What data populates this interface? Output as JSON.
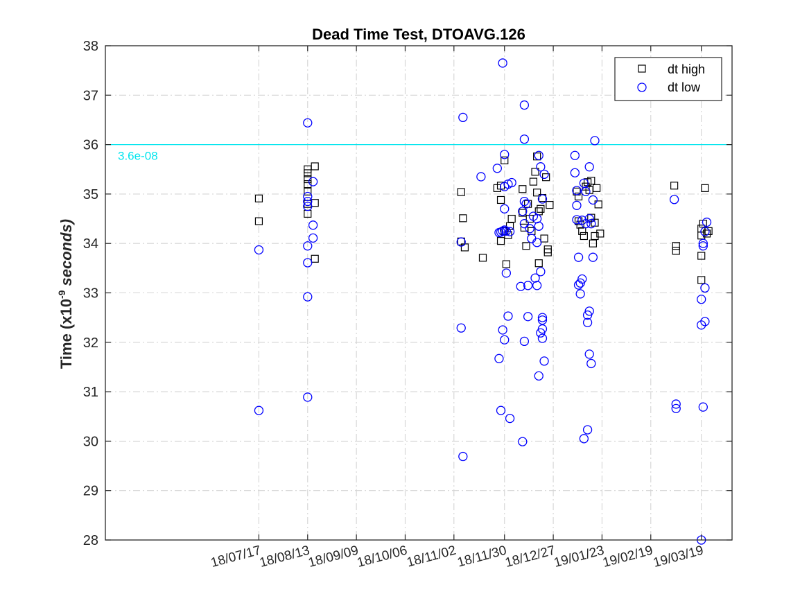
{
  "chart_data": {
    "type": "scatter",
    "title": "Dead Time Test, DTOAVG.126",
    "ylabel": "Time (x10",
    "ylabel_exponent": "-9",
    "ylabel_unit": " seconds)",
    "ylim": [
      28,
      38
    ],
    "xlim": [
      "2018-04-23",
      "2019-04-05"
    ],
    "yticks": [
      28,
      29,
      30,
      31,
      32,
      33,
      34,
      35,
      36,
      37,
      38
    ],
    "xtick_dates": [
      "2018-07-17",
      "2018-08-13",
      "2018-09-09",
      "2018-10-06",
      "2018-11-02",
      "2018-11-30",
      "2018-12-27",
      "2019-01-23",
      "2019-02-19",
      "2019-03-19"
    ],
    "xtick_labels": [
      "18/07/17",
      "18/08/13",
      "18/09/09",
      "18/10/06",
      "18/11/02",
      "18/11/30",
      "18/12/27",
      "19/01/23",
      "19/02/19",
      "19/03/19"
    ],
    "grid": true,
    "legend_position": "top-right",
    "threshold": {
      "value": 36,
      "label": "3.6e-08",
      "color": "#00e5ee"
    },
    "series": [
      {
        "name": "dt high",
        "marker": "square",
        "color": "#000000",
        "points": [
          {
            "x": "2018-07-17",
            "y": 34.91
          },
          {
            "x": "2018-07-17",
            "y": 34.45
          },
          {
            "x": "2018-08-13",
            "y": 35.5
          },
          {
            "x": "2018-08-13",
            "y": 35.42
          },
          {
            "x": "2018-08-13",
            "y": 35.3
          },
          {
            "x": "2018-08-13",
            "y": 35.2
          },
          {
            "x": "2018-08-13",
            "y": 35.05
          },
          {
            "x": "2018-08-13",
            "y": 34.8
          },
          {
            "x": "2018-08-13",
            "y": 34.6
          },
          {
            "x": "2018-08-17",
            "y": 35.56
          },
          {
            "x": "2018-08-17",
            "y": 34.82
          },
          {
            "x": "2018-08-17",
            "y": 33.69
          },
          {
            "x": "2018-11-06",
            "y": 35.04
          },
          {
            "x": "2018-11-07",
            "y": 34.51
          },
          {
            "x": "2018-11-06",
            "y": 34.04
          },
          {
            "x": "2018-11-08",
            "y": 33.92
          },
          {
            "x": "2018-11-18",
            "y": 33.71
          },
          {
            "x": "2018-11-26",
            "y": 35.12
          },
          {
            "x": "2018-11-28",
            "y": 35.17
          },
          {
            "x": "2018-11-28",
            "y": 34.88
          },
          {
            "x": "2018-11-28",
            "y": 34.05
          },
          {
            "x": "2018-11-30",
            "y": 35.68
          },
          {
            "x": "2018-11-30",
            "y": 34.25
          },
          {
            "x": "2018-12-01",
            "y": 33.58
          },
          {
            "x": "2018-12-02",
            "y": 34.17
          },
          {
            "x": "2018-12-03",
            "y": 34.35
          },
          {
            "x": "2018-12-04",
            "y": 34.5
          },
          {
            "x": "2018-12-10",
            "y": 35.1
          },
          {
            "x": "2018-12-10",
            "y": 34.62
          },
          {
            "x": "2018-12-11",
            "y": 34.32
          },
          {
            "x": "2018-12-12",
            "y": 33.95
          },
          {
            "x": "2018-12-13",
            "y": 34.8
          },
          {
            "x": "2018-12-14",
            "y": 34.5
          },
          {
            "x": "2018-12-15",
            "y": 34.25
          },
          {
            "x": "2018-12-16",
            "y": 35.25
          },
          {
            "x": "2018-12-17",
            "y": 35.45
          },
          {
            "x": "2018-12-18",
            "y": 35.76
          },
          {
            "x": "2018-12-18",
            "y": 35.03
          },
          {
            "x": "2018-12-19",
            "y": 34.65
          },
          {
            "x": "2018-12-19",
            "y": 33.6
          },
          {
            "x": "2018-12-20",
            "y": 34.7
          },
          {
            "x": "2018-12-21",
            "y": 34.92
          },
          {
            "x": "2018-12-22",
            "y": 34.1
          },
          {
            "x": "2018-12-23",
            "y": 35.34
          },
          {
            "x": "2018-12-24",
            "y": 33.88
          },
          {
            "x": "2018-12-24",
            "y": 33.82
          },
          {
            "x": "2018-12-25",
            "y": 34.78
          },
          {
            "x": "2019-01-09",
            "y": 35.05
          },
          {
            "x": "2019-01-10",
            "y": 34.95
          },
          {
            "x": "2019-01-10",
            "y": 34.45
          },
          {
            "x": "2019-01-11",
            "y": 34.38
          },
          {
            "x": "2019-01-12",
            "y": 34.25
          },
          {
            "x": "2019-01-13",
            "y": 34.15
          },
          {
            "x": "2019-01-14",
            "y": 35.15
          },
          {
            "x": "2019-01-15",
            "y": 35.24
          },
          {
            "x": "2019-01-16",
            "y": 35.08
          },
          {
            "x": "2019-01-17",
            "y": 35.27
          },
          {
            "x": "2019-01-17",
            "y": 34.52
          },
          {
            "x": "2019-01-18",
            "y": 34.0
          },
          {
            "x": "2019-01-19",
            "y": 34.42
          },
          {
            "x": "2019-01-19",
            "y": 34.15
          },
          {
            "x": "2019-01-20",
            "y": 35.12
          },
          {
            "x": "2019-01-21",
            "y": 34.79
          },
          {
            "x": "2019-01-22",
            "y": 34.2
          },
          {
            "x": "2019-03-04",
            "y": 35.17
          },
          {
            "x": "2019-03-05",
            "y": 33.95
          },
          {
            "x": "2019-03-05",
            "y": 33.85
          },
          {
            "x": "2019-03-19",
            "y": 34.3
          },
          {
            "x": "2019-03-19",
            "y": 34.16
          },
          {
            "x": "2019-03-19",
            "y": 33.75
          },
          {
            "x": "2019-03-19",
            "y": 33.26
          },
          {
            "x": "2019-03-20",
            "y": 34.4
          },
          {
            "x": "2019-03-21",
            "y": 35.12
          },
          {
            "x": "2019-03-22",
            "y": 34.2
          },
          {
            "x": "2019-03-23",
            "y": 34.25
          }
        ]
      },
      {
        "name": "dt low",
        "marker": "circle",
        "color": "#0000ff",
        "points": [
          {
            "x": "2018-07-17",
            "y": 33.87
          },
          {
            "x": "2018-07-17",
            "y": 30.62
          },
          {
            "x": "2018-08-13",
            "y": 36.44
          },
          {
            "x": "2018-08-13",
            "y": 34.95
          },
          {
            "x": "2018-08-13",
            "y": 34.85
          },
          {
            "x": "2018-08-13",
            "y": 34.75
          },
          {
            "x": "2018-08-13",
            "y": 33.95
          },
          {
            "x": "2018-08-13",
            "y": 33.61
          },
          {
            "x": "2018-08-13",
            "y": 32.92
          },
          {
            "x": "2018-08-13",
            "y": 30.89
          },
          {
            "x": "2018-08-16",
            "y": 35.25
          },
          {
            "x": "2018-08-16",
            "y": 34.37
          },
          {
            "x": "2018-08-16",
            "y": 34.11
          },
          {
            "x": "2018-11-06",
            "y": 34.03
          },
          {
            "x": "2018-11-06",
            "y": 32.29
          },
          {
            "x": "2018-11-07",
            "y": 36.55
          },
          {
            "x": "2018-11-07",
            "y": 29.69
          },
          {
            "x": "2018-11-17",
            "y": 35.35
          },
          {
            "x": "2018-11-26",
            "y": 35.52
          },
          {
            "x": "2018-11-27",
            "y": 34.22
          },
          {
            "x": "2018-11-27",
            "y": 31.67
          },
          {
            "x": "2018-11-28",
            "y": 34.23
          },
          {
            "x": "2018-11-28",
            "y": 30.62
          },
          {
            "x": "2018-11-29",
            "y": 37.65
          },
          {
            "x": "2018-11-29",
            "y": 34.25
          },
          {
            "x": "2018-11-29",
            "y": 32.25
          },
          {
            "x": "2018-11-30",
            "y": 35.8
          },
          {
            "x": "2018-11-30",
            "y": 35.15
          },
          {
            "x": "2018-11-30",
            "y": 34.7
          },
          {
            "x": "2018-11-30",
            "y": 34.27
          },
          {
            "x": "2018-11-30",
            "y": 32.05
          },
          {
            "x": "2018-12-01",
            "y": 34.25
          },
          {
            "x": "2018-12-01",
            "y": 33.4
          },
          {
            "x": "2018-12-02",
            "y": 35.2
          },
          {
            "x": "2018-12-02",
            "y": 32.53
          },
          {
            "x": "2018-12-03",
            "y": 34.24
          },
          {
            "x": "2018-12-03",
            "y": 30.46
          },
          {
            "x": "2018-12-04",
            "y": 35.23
          },
          {
            "x": "2018-12-09",
            "y": 33.13
          },
          {
            "x": "2018-12-10",
            "y": 34.65
          },
          {
            "x": "2018-12-10",
            "y": 29.99
          },
          {
            "x": "2018-12-11",
            "y": 36.8
          },
          {
            "x": "2018-12-11",
            "y": 36.11
          },
          {
            "x": "2018-12-11",
            "y": 34.85
          },
          {
            "x": "2018-12-11",
            "y": 34.4
          },
          {
            "x": "2018-12-11",
            "y": 32.02
          },
          {
            "x": "2018-12-12",
            "y": 34.8
          },
          {
            "x": "2018-12-13",
            "y": 33.15
          },
          {
            "x": "2018-12-13",
            "y": 32.52
          },
          {
            "x": "2018-12-14",
            "y": 34.3
          },
          {
            "x": "2018-12-15",
            "y": 34.1
          },
          {
            "x": "2018-12-16",
            "y": 34.55
          },
          {
            "x": "2018-12-17",
            "y": 33.3
          },
          {
            "x": "2018-12-18",
            "y": 34.5
          },
          {
            "x": "2018-12-18",
            "y": 34.02
          },
          {
            "x": "2018-12-18",
            "y": 33.15
          },
          {
            "x": "2018-12-19",
            "y": 35.78
          },
          {
            "x": "2018-12-19",
            "y": 34.35
          },
          {
            "x": "2018-12-19",
            "y": 31.32
          },
          {
            "x": "2018-12-20",
            "y": 35.55
          },
          {
            "x": "2018-12-20",
            "y": 33.43
          },
          {
            "x": "2018-12-20",
            "y": 32.19
          },
          {
            "x": "2018-12-21",
            "y": 34.9
          },
          {
            "x": "2018-12-21",
            "y": 32.5
          },
          {
            "x": "2018-12-21",
            "y": 32.45
          },
          {
            "x": "2018-12-21",
            "y": 32.27
          },
          {
            "x": "2018-12-21",
            "y": 32.08
          },
          {
            "x": "2018-12-22",
            "y": 35.4
          },
          {
            "x": "2018-12-22",
            "y": 31.62
          },
          {
            "x": "2019-01-08",
            "y": 35.78
          },
          {
            "x": "2019-01-08",
            "y": 35.43
          },
          {
            "x": "2019-01-09",
            "y": 35.07
          },
          {
            "x": "2019-01-09",
            "y": 34.77
          },
          {
            "x": "2019-01-09",
            "y": 34.48
          },
          {
            "x": "2019-01-10",
            "y": 33.72
          },
          {
            "x": "2019-01-10",
            "y": 33.16
          },
          {
            "x": "2019-01-11",
            "y": 33.2
          },
          {
            "x": "2019-01-11",
            "y": 32.98
          },
          {
            "x": "2019-01-12",
            "y": 34.47
          },
          {
            "x": "2019-01-12",
            "y": 33.28
          },
          {
            "x": "2019-01-13",
            "y": 35.22
          },
          {
            "x": "2019-01-13",
            "y": 30.05
          },
          {
            "x": "2019-01-14",
            "y": 35.05
          },
          {
            "x": "2019-01-14",
            "y": 34.4
          },
          {
            "x": "2019-01-15",
            "y": 32.4
          },
          {
            "x": "2019-01-15",
            "y": 32.55
          },
          {
            "x": "2019-01-15",
            "y": 30.23
          },
          {
            "x": "2019-01-16",
            "y": 35.55
          },
          {
            "x": "2019-01-16",
            "y": 34.5
          },
          {
            "x": "2019-01-16",
            "y": 32.63
          },
          {
            "x": "2019-01-16",
            "y": 31.76
          },
          {
            "x": "2019-01-17",
            "y": 34.4
          },
          {
            "x": "2019-01-17",
            "y": 31.57
          },
          {
            "x": "2019-01-18",
            "y": 34.88
          },
          {
            "x": "2019-01-18",
            "y": 33.72
          },
          {
            "x": "2019-01-19",
            "y": 36.08
          },
          {
            "x": "2019-03-04",
            "y": 34.89
          },
          {
            "x": "2019-03-05",
            "y": 30.75
          },
          {
            "x": "2019-03-05",
            "y": 30.66
          },
          {
            "x": "2019-03-19",
            "y": 32.87
          },
          {
            "x": "2019-03-19",
            "y": 32.35
          },
          {
            "x": "2019-03-19",
            "y": 28.0
          },
          {
            "x": "2019-03-20",
            "y": 34.0
          },
          {
            "x": "2019-03-20",
            "y": 33.95
          },
          {
            "x": "2019-03-20",
            "y": 30.69
          },
          {
            "x": "2019-03-21",
            "y": 34.24
          },
          {
            "x": "2019-03-21",
            "y": 33.1
          },
          {
            "x": "2019-03-21",
            "y": 32.42
          },
          {
            "x": "2019-03-22",
            "y": 34.43
          }
        ]
      }
    ]
  }
}
